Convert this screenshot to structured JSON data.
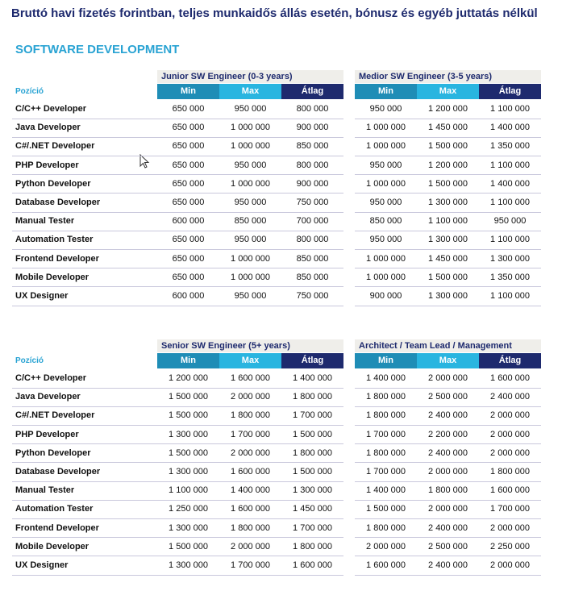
{
  "title": "Bruttó havi fizetés forintban, teljes munkaidős állás esetén, bónusz és egyéb juttatás nélkül",
  "section": "SOFTWARE DEVELOPMENT",
  "tables": [
    {
      "row_header": "Pozíció",
      "groups": [
        {
          "title": "Junior SW Engineer (0-3 years)",
          "columns": [
            "Min",
            "Max",
            "Átlag"
          ]
        },
        {
          "title": "Medior SW Engineer (3-5 years)",
          "columns": [
            "Min",
            "Max",
            "Átlag"
          ]
        }
      ],
      "rows": [
        {
          "label": "C/C++ Developer",
          "values": [
            "650 000",
            "950 000",
            "800 000",
            "950 000",
            "1 200 000",
            "1 100 000"
          ]
        },
        {
          "label": "Java Developer",
          "values": [
            "650 000",
            "1 000 000",
            "900 000",
            "1 000 000",
            "1 450 000",
            "1 400 000"
          ]
        },
        {
          "label": "C#/.NET Developer",
          "values": [
            "650 000",
            "1 000 000",
            "850 000",
            "1 000 000",
            "1 500 000",
            "1 350 000"
          ]
        },
        {
          "label": "PHP Developer",
          "values": [
            "650 000",
            "950 000",
            "800 000",
            "950 000",
            "1 200 000",
            "1 100 000"
          ]
        },
        {
          "label": "Python Developer",
          "values": [
            "650 000",
            "1 000 000",
            "900 000",
            "1 000 000",
            "1 500 000",
            "1 400 000"
          ]
        },
        {
          "label": "Database Developer",
          "values": [
            "650 000",
            "950 000",
            "750 000",
            "950 000",
            "1 300 000",
            "1 100 000"
          ]
        },
        {
          "label": "Manual Tester",
          "values": [
            "600 000",
            "850 000",
            "700 000",
            "850 000",
            "1 100 000",
            "950 000"
          ]
        },
        {
          "label": "Automation Tester",
          "values": [
            "650 000",
            "950 000",
            "800 000",
            "950 000",
            "1 300 000",
            "1 100 000"
          ]
        },
        {
          "label": "Frontend Developer",
          "values": [
            "650 000",
            "1 000 000",
            "850 000",
            "1 000 000",
            "1 450 000",
            "1 300 000"
          ]
        },
        {
          "label": "Mobile Developer",
          "values": [
            "650 000",
            "1 000 000",
            "850 000",
            "1 000 000",
            "1 500 000",
            "1 350 000"
          ]
        },
        {
          "label": "UX Designer",
          "values": [
            "600 000",
            "950 000",
            "750 000",
            "900 000",
            "1 300 000",
            "1 100 000"
          ]
        }
      ]
    },
    {
      "row_header": "Pozíció",
      "groups": [
        {
          "title": "Senior SW Engineer (5+ years)",
          "columns": [
            "Min",
            "Max",
            "Átlag"
          ]
        },
        {
          "title": "Architect / Team Lead / Management",
          "columns": [
            "Min",
            "Max",
            "Átlag"
          ]
        }
      ],
      "rows": [
        {
          "label": "C/C++ Developer",
          "values": [
            "1 200 000",
            "1 600 000",
            "1 400 000",
            "1 400 000",
            "2 000 000",
            "1 600 000"
          ]
        },
        {
          "label": "Java Developer",
          "values": [
            "1 500 000",
            "2 000 000",
            "1 800 000",
            "1 800 000",
            "2 500 000",
            "2 400 000"
          ]
        },
        {
          "label": "C#/.NET Developer",
          "values": [
            "1 500 000",
            "1 800 000",
            "1 700 000",
            "1 800 000",
            "2 400 000",
            "2 000 000"
          ]
        },
        {
          "label": "PHP Developer",
          "values": [
            "1 300 000",
            "1 700 000",
            "1 500 000",
            "1 700 000",
            "2 200 000",
            "2 000 000"
          ]
        },
        {
          "label": "Python Developer",
          "values": [
            "1 500 000",
            "2 000 000",
            "1 800 000",
            "1 800 000",
            "2 400 000",
            "2 000 000"
          ]
        },
        {
          "label": "Database Developer",
          "values": [
            "1 300 000",
            "1 600 000",
            "1 500 000",
            "1 700 000",
            "2 000 000",
            "1 800 000"
          ]
        },
        {
          "label": "Manual Tester",
          "values": [
            "1 100 000",
            "1 400 000",
            "1 300 000",
            "1 400 000",
            "1 800 000",
            "1 600 000"
          ]
        },
        {
          "label": "Automation Tester",
          "values": [
            "1 250 000",
            "1 600 000",
            "1 450 000",
            "1 500 000",
            "2 000 000",
            "1 700 000"
          ]
        },
        {
          "label": "Frontend Developer",
          "values": [
            "1 300 000",
            "1 800 000",
            "1 700 000",
            "1 800 000",
            "2 400 000",
            "2 000 000"
          ]
        },
        {
          "label": "Mobile Developer",
          "values": [
            "1 500 000",
            "2 000 000",
            "1 800 000",
            "2 000 000",
            "2 500 000",
            "2 250 000"
          ]
        },
        {
          "label": "UX Designer",
          "values": [
            "1 300 000",
            "1 700 000",
            "1 600 000",
            "1 600 000",
            "2 400 000",
            "2 000 000"
          ]
        }
      ]
    }
  ]
}
